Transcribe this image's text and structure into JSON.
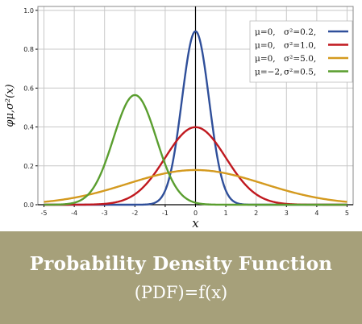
{
  "colors": {
    "banner_bg": "#a6a07a",
    "banner_text": "#ffffff",
    "grid": "#c8c8c8",
    "axis": "#000000"
  },
  "banner": {
    "title": "Probability Density Function",
    "subtitle": "(PDF)=f(x)"
  },
  "chart_data": {
    "type": "line",
    "title": "",
    "xlabel": "x",
    "ylabel": "φμ,σ²(x)",
    "xlim": [
      -5.2,
      5.2
    ],
    "ylim": [
      0,
      1.02
    ],
    "x_ticks": [
      -5,
      -4,
      -3,
      -2,
      -1,
      0,
      1,
      2,
      3,
      4,
      5
    ],
    "y_ticks": [
      0.0,
      0.2,
      0.4,
      0.6,
      0.8,
      1.0
    ],
    "x_tick_labels": [
      "-5",
      "-4",
      "-3",
      "-2",
      "-1",
      "0",
      "1",
      "2",
      "3",
      "4",
      "5"
    ],
    "y_tick_labels": [
      "0.0",
      "0.2",
      "0.4",
      "0.6",
      "0.8",
      "1.0"
    ],
    "grid": true,
    "legend_position": "top-right",
    "series": [
      {
        "legend_mu": "μ=0,",
        "legend_var": "σ²=0.2,",
        "mu": 0,
        "variance": 0.2,
        "color": "#2f4f9a"
      },
      {
        "legend_mu": "μ=0,",
        "legend_var": "σ²=1.0,",
        "mu": 0,
        "variance": 1.0,
        "color": "#c0191f"
      },
      {
        "legend_mu": "μ=0,",
        "legend_var": "σ²=5.0,",
        "mu": 0,
        "variance": 5.0,
        "color": "#d49a1f"
      },
      {
        "legend_mu": "μ=−2,",
        "legend_var": "σ²=0.5,",
        "mu": -2,
        "variance": 0.5,
        "color": "#5a9e2f"
      }
    ]
  }
}
